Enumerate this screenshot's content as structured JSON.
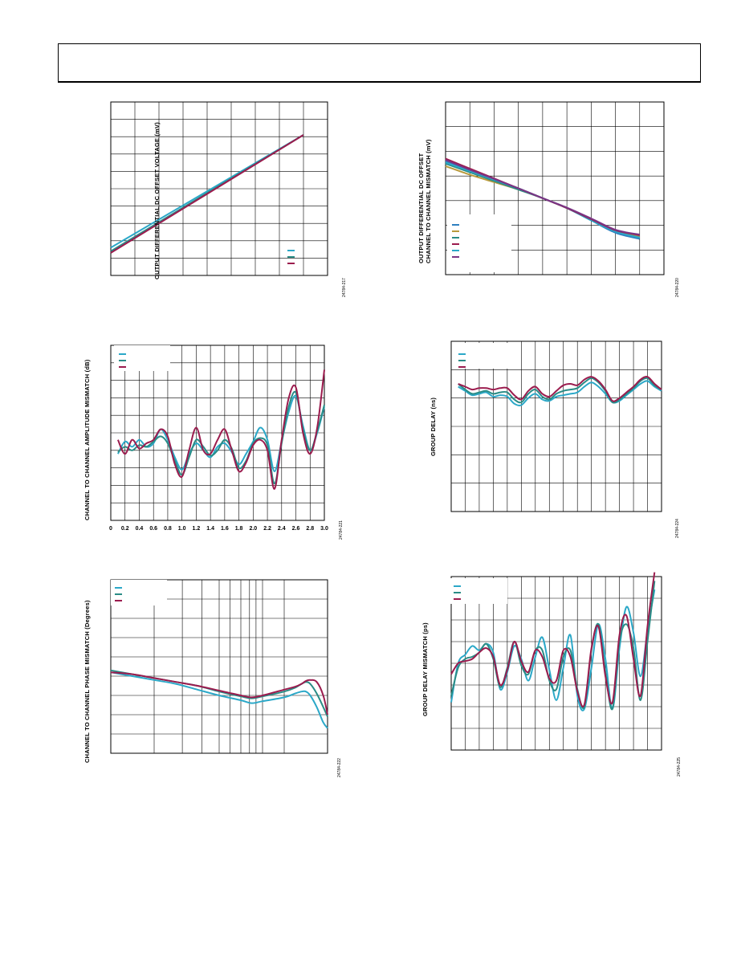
{
  "colors": {
    "teal": "#2A8C86",
    "cyan": "#2BA8C8",
    "maroon": "#9B1C4E",
    "blue": "#2E7FC0",
    "gold": "#B89A3C",
    "purple": "#7A3585"
  },
  "chart_data": [
    {
      "id": "fig217",
      "type": "line",
      "ylabel": "OUTPUT DIFFERENTIAL DC OFFSET VOLTAGE (mV)",
      "fig_id": "24784-217",
      "grid": true,
      "xlim": [
        0,
        9
      ],
      "ylim": [
        0,
        10
      ],
      "series": [
        {
          "color": "cyan",
          "x": [
            0,
            8
          ],
          "y": [
            1.6,
            8.1
          ]
        },
        {
          "color": "teal",
          "x": [
            0,
            8
          ],
          "y": [
            1.4,
            8.1
          ]
        },
        {
          "color": "maroon",
          "x": [
            0,
            8
          ],
          "y": [
            1.3,
            8.1
          ]
        }
      ],
      "legend_colors": [
        "cyan",
        "teal",
        "maroon"
      ]
    },
    {
      "id": "fig220",
      "type": "line",
      "ylabel": "OUTPUT DIFFERENTIAL DC OFFSET CHANNEL TO CHANNEL MISMATCH (mV)",
      "ylabel_lines": [
        "OUTPUT DIFFERENTIAL DC OFFSET",
        "CHANNEL TO CHANNEL MISMATCH (mV)"
      ],
      "fig_id": "24784-220",
      "grid": true,
      "xlim": [
        0,
        9
      ],
      "ylim": [
        0,
        7
      ],
      "series": [
        {
          "color": "gold",
          "x": [
            0,
            1,
            2,
            3,
            4,
            5,
            6,
            7,
            8
          ],
          "y": [
            4.4,
            4.05,
            3.75,
            3.45,
            3.1,
            2.7,
            2.25,
            1.8,
            1.55
          ]
        },
        {
          "color": "teal",
          "x": [
            0,
            1,
            2,
            3,
            4,
            5,
            6,
            7,
            8
          ],
          "y": [
            4.5,
            4.15,
            3.8,
            3.45,
            3.1,
            2.7,
            2.25,
            1.75,
            1.5
          ]
        },
        {
          "color": "blue",
          "x": [
            0,
            1,
            2,
            3,
            4,
            5,
            6,
            7,
            8
          ],
          "y": [
            4.6,
            4.2,
            3.85,
            3.5,
            3.1,
            2.7,
            2.2,
            1.7,
            1.45
          ]
        },
        {
          "color": "cyan",
          "x": [
            0,
            1,
            2,
            3,
            4,
            5,
            6,
            7,
            8
          ],
          "y": [
            4.55,
            4.2,
            3.85,
            3.5,
            3.1,
            2.7,
            2.2,
            1.75,
            1.5
          ]
        },
        {
          "color": "maroon",
          "x": [
            0,
            1,
            2,
            3,
            4,
            5,
            6,
            7,
            8
          ],
          "y": [
            4.7,
            4.3,
            3.9,
            3.5,
            3.1,
            2.7,
            2.25,
            1.8,
            1.6
          ]
        },
        {
          "color": "purple",
          "x": [
            0,
            1,
            2,
            3,
            4,
            5,
            6,
            7,
            8
          ],
          "y": [
            4.65,
            4.25,
            3.88,
            3.5,
            3.1,
            2.72,
            2.28,
            1.82,
            1.62
          ]
        }
      ],
      "legend_colors": [
        "blue",
        "gold",
        "teal",
        "maroon",
        "cyan",
        "purple"
      ]
    },
    {
      "id": "fig221",
      "type": "line",
      "ylabel": "CHANNEL TO CHANNEL AMPLITUDE MISMATCH (dB)",
      "fig_id": "24784-221",
      "grid": true,
      "xlim": [
        0,
        3.0
      ],
      "ylim": [
        0,
        10
      ],
      "x_ticks": [
        "0",
        "0.2",
        "0.4",
        "0.6",
        "0.8",
        "1.0",
        "1.2",
        "1.4",
        "1.6",
        "1.8",
        "2.0",
        "2.2",
        "2.4",
        "2.6",
        "2.8",
        "3.0"
      ],
      "series": [
        {
          "color": "cyan",
          "x": [
            0.1,
            0.2,
            0.3,
            0.4,
            0.5,
            0.6,
            0.7,
            0.8,
            0.9,
            1.0,
            1.1,
            1.2,
            1.3,
            1.4,
            1.5,
            1.6,
            1.7,
            1.8,
            1.9,
            2.0,
            2.1,
            2.2,
            2.3,
            2.4,
            2.5,
            2.6,
            2.7,
            2.8,
            2.9,
            3.0
          ],
          "y": [
            3.8,
            4.5,
            4.2,
            4.6,
            4.2,
            4.4,
            5.2,
            4.6,
            3.6,
            2.9,
            3.8,
            4.4,
            4.0,
            3.6,
            4.2,
            4.4,
            3.9,
            3.2,
            3.8,
            4.5,
            5.3,
            4.6,
            2.8,
            4.5,
            6.2,
            7.1,
            5.4,
            4.0,
            5.0,
            6.5
          ]
        },
        {
          "color": "teal",
          "x": [
            0.1,
            0.2,
            0.3,
            0.4,
            0.5,
            0.6,
            0.7,
            0.8,
            0.9,
            1.0,
            1.1,
            1.2,
            1.3,
            1.4,
            1.5,
            1.6,
            1.7,
            1.8,
            1.9,
            2.0,
            2.1,
            2.2,
            2.3,
            2.4,
            2.5,
            2.6,
            2.7,
            2.8,
            2.9,
            3.0
          ],
          "y": [
            3.9,
            4.2,
            4.0,
            4.3,
            4.2,
            4.5,
            4.8,
            4.4,
            3.4,
            2.6,
            3.6,
            4.6,
            4.2,
            3.7,
            4.0,
            4.6,
            4.1,
            3.0,
            3.4,
            4.4,
            4.7,
            4.3,
            2.1,
            4.4,
            6.5,
            7.3,
            5.2,
            4.0,
            5.1,
            6.6
          ]
        },
        {
          "color": "maroon",
          "x": [
            0.1,
            0.2,
            0.3,
            0.4,
            0.5,
            0.6,
            0.7,
            0.8,
            0.9,
            1.0,
            1.1,
            1.2,
            1.3,
            1.4,
            1.5,
            1.6,
            1.7,
            1.8,
            1.9,
            2.0,
            2.1,
            2.2,
            2.3,
            2.4,
            2.5,
            2.6,
            2.7,
            2.8,
            2.9,
            3.0
          ],
          "y": [
            4.6,
            3.8,
            4.6,
            4.1,
            4.4,
            4.6,
            5.2,
            4.8,
            3.2,
            2.5,
            4.0,
            5.3,
            4.0,
            3.8,
            4.6,
            5.2,
            4.0,
            2.8,
            3.3,
            4.3,
            4.6,
            4.0,
            1.8,
            4.6,
            7.0,
            7.6,
            5.0,
            3.8,
            5.3,
            8.6
          ]
        }
      ],
      "legend_colors": [
        "cyan",
        "teal",
        "maroon"
      ]
    },
    {
      "id": "fig224",
      "type": "line",
      "ylabel": "GROUP DELAY (ns)",
      "fig_id": "24784-224",
      "grid": true,
      "xlim": [
        0,
        15
      ],
      "ylim": [
        0,
        6
      ],
      "series": [
        {
          "color": "cyan",
          "x": [
            0.5,
            1,
            1.5,
            2,
            2.5,
            3,
            3.5,
            4,
            4.5,
            5,
            5.5,
            6,
            6.5,
            7,
            7.5,
            8,
            8.5,
            9,
            9.5,
            10,
            10.5,
            11,
            11.5,
            12,
            12.5,
            13,
            13.5,
            14,
            14.5,
            15
          ],
          "y": [
            4.4,
            4.25,
            4.1,
            4.15,
            4.2,
            4.05,
            4.1,
            4.05,
            3.8,
            3.75,
            4.0,
            4.15,
            3.95,
            3.9,
            4.05,
            4.1,
            4.15,
            4.2,
            4.4,
            4.55,
            4.4,
            4.15,
            3.85,
            3.9,
            4.1,
            4.3,
            4.5,
            4.6,
            4.4,
            4.25
          ]
        },
        {
          "color": "teal",
          "x": [
            0.5,
            1,
            1.5,
            2,
            2.5,
            3,
            3.5,
            4,
            4.5,
            5,
            5.5,
            6,
            6.5,
            7,
            7.5,
            8,
            8.5,
            9,
            9.5,
            10,
            10.5,
            11,
            11.5,
            12,
            12.5,
            13,
            13.5,
            14,
            14.5,
            15
          ],
          "y": [
            4.5,
            4.3,
            4.15,
            4.2,
            4.25,
            4.15,
            4.2,
            4.2,
            3.95,
            3.85,
            4.15,
            4.3,
            4.05,
            3.95,
            4.15,
            4.25,
            4.3,
            4.35,
            4.55,
            4.7,
            4.55,
            4.25,
            3.85,
            3.95,
            4.15,
            4.35,
            4.6,
            4.7,
            4.45,
            4.3
          ]
        },
        {
          "color": "maroon",
          "x": [
            0.5,
            1,
            1.5,
            2,
            2.5,
            3,
            3.5,
            4,
            4.5,
            5,
            5.5,
            6,
            6.5,
            7,
            7.5,
            8,
            8.5,
            9,
            9.5,
            10,
            10.5,
            11,
            11.5,
            12,
            12.5,
            13,
            13.5,
            14,
            14.5,
            15
          ],
          "y": [
            4.5,
            4.4,
            4.3,
            4.35,
            4.35,
            4.3,
            4.35,
            4.35,
            4.1,
            3.95,
            4.25,
            4.4,
            4.15,
            4.05,
            4.25,
            4.45,
            4.5,
            4.45,
            4.65,
            4.75,
            4.6,
            4.3,
            3.9,
            4.0,
            4.2,
            4.4,
            4.65,
            4.75,
            4.5,
            4.3
          ]
        }
      ],
      "legend_colors": [
        "cyan",
        "teal",
        "maroon"
      ]
    },
    {
      "id": "fig222",
      "type": "line",
      "ylabel": "CHANNEL TO CHANNEL PHASE MISMATCH (Degrees)",
      "fig_id": "24784-222",
      "grid": true,
      "xlim": [
        0,
        1
      ],
      "ylim": [
        0,
        9
      ],
      "series": [
        {
          "color": "cyan",
          "x": [
            0,
            0.1,
            0.2,
            0.3,
            0.4,
            0.5,
            0.6,
            0.65,
            0.7,
            0.8,
            0.85,
            0.88,
            0.9,
            0.92,
            0.95,
            0.98,
            1.0
          ],
          "y": [
            4.2,
            4.0,
            3.8,
            3.6,
            3.3,
            3.0,
            2.75,
            2.6,
            2.7,
            2.9,
            3.1,
            3.2,
            3.2,
            3.0,
            2.4,
            1.6,
            1.3
          ]
        },
        {
          "color": "teal",
          "x": [
            0,
            0.1,
            0.2,
            0.3,
            0.4,
            0.5,
            0.6,
            0.65,
            0.7,
            0.8,
            0.85,
            0.88,
            0.9,
            0.92,
            0.95,
            0.98,
            1.0
          ],
          "y": [
            4.3,
            4.1,
            3.9,
            3.7,
            3.5,
            3.2,
            2.95,
            2.85,
            2.95,
            3.2,
            3.4,
            3.6,
            3.7,
            3.6,
            3.1,
            2.4,
            1.9
          ]
        },
        {
          "color": "maroon",
          "x": [
            0,
            0.1,
            0.2,
            0.3,
            0.4,
            0.5,
            0.6,
            0.65,
            0.7,
            0.8,
            0.85,
            0.88,
            0.9,
            0.92,
            0.95,
            0.98,
            1.0
          ],
          "y": [
            4.2,
            4.1,
            3.9,
            3.7,
            3.5,
            3.25,
            3.0,
            2.9,
            3.0,
            3.3,
            3.45,
            3.6,
            3.75,
            3.8,
            3.7,
            3.0,
            2.0
          ]
        }
      ],
      "v_grid": [
        0.2,
        0.33,
        0.42,
        0.5,
        0.55,
        0.6,
        0.64,
        0.67,
        0.7,
        0.8,
        1.0
      ],
      "legend_colors": [
        "cyan",
        "teal",
        "maroon"
      ]
    },
    {
      "id": "fig225",
      "type": "line",
      "ylabel": "GROUP DELAY MISMATCH (ps)",
      "fig_id": "24784-225",
      "grid": true,
      "xlim": [
        0,
        15
      ],
      "ylim": [
        0,
        8
      ],
      "series": [
        {
          "color": "cyan",
          "x": [
            0,
            0.5,
            1,
            1.5,
            2,
            2.5,
            3,
            3.5,
            4,
            4.5,
            5,
            5.5,
            6,
            6.5,
            7,
            7.5,
            8,
            8.5,
            9,
            9.5,
            10,
            10.5,
            11,
            11.5,
            12,
            12.5,
            13,
            13.5,
            14,
            14.5
          ],
          "y": [
            2.2,
            4.0,
            4.4,
            4.8,
            4.6,
            4.9,
            4.5,
            2.8,
            3.6,
            4.8,
            4.2,
            3.2,
            4.3,
            5.2,
            3.7,
            2.3,
            3.8,
            5.3,
            2.5,
            1.9,
            3.8,
            5.8,
            4.2,
            1.9,
            4.7,
            6.6,
            5.4,
            3.4,
            5.5,
            7.4
          ]
        },
        {
          "color": "teal",
          "x": [
            0,
            0.5,
            1,
            1.5,
            2,
            2.5,
            3,
            3.5,
            4,
            4.5,
            5,
            5.5,
            6,
            6.5,
            7,
            7.5,
            8,
            8.5,
            9,
            9.5,
            10,
            10.5,
            11,
            11.5,
            12,
            12.5,
            13,
            13.5,
            14,
            14.5
          ],
          "y": [
            2.5,
            3.8,
            4.2,
            4.3,
            4.5,
            4.9,
            4.2,
            2.9,
            3.8,
            5.0,
            3.9,
            3.5,
            4.6,
            4.6,
            3.2,
            2.8,
            4.3,
            4.6,
            2.8,
            2.0,
            4.6,
            5.8,
            3.6,
            1.9,
            5.0,
            5.8,
            4.7,
            2.3,
            5.0,
            7.8
          ]
        },
        {
          "color": "maroon",
          "x": [
            0,
            0.5,
            1,
            1.5,
            2,
            2.5,
            3,
            3.5,
            4,
            4.5,
            5,
            5.5,
            6,
            6.5,
            7,
            7.5,
            8,
            8.5,
            9,
            9.5,
            10,
            10.5,
            11,
            11.5,
            12,
            12.5,
            13,
            13.5,
            14,
            14.5
          ],
          "y": [
            3.5,
            4.0,
            4.1,
            4.2,
            4.5,
            4.7,
            4.3,
            3.0,
            3.7,
            5.0,
            4.1,
            3.6,
            4.6,
            4.3,
            3.3,
            3.2,
            4.6,
            4.3,
            2.7,
            2.1,
            4.7,
            5.7,
            3.4,
            2.2,
            5.3,
            6.2,
            4.2,
            2.5,
            5.7,
            8.2
          ]
        }
      ],
      "legend_colors": [
        "cyan",
        "teal",
        "maroon"
      ]
    }
  ]
}
